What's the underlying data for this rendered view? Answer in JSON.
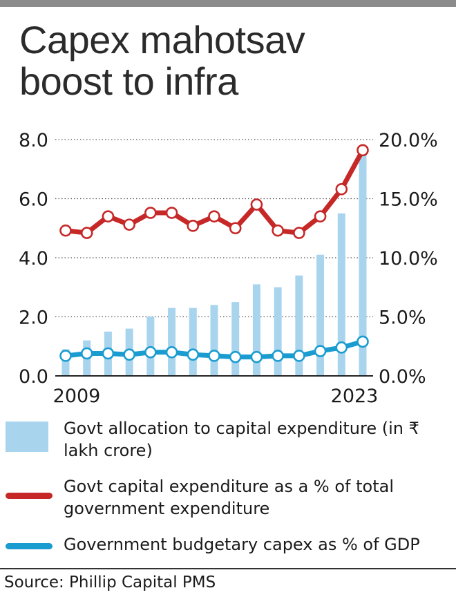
{
  "header": {
    "title": "Capex mahotsav boost to infra"
  },
  "chart_data": {
    "type": "bar",
    "x": [
      2009,
      2010,
      2011,
      2012,
      2013,
      2014,
      2015,
      2016,
      2017,
      2018,
      2019,
      2020,
      2021,
      2022,
      2023
    ],
    "x_tick_labels": [
      "2009",
      "2023"
    ],
    "y_left": {
      "lim": [
        0,
        8
      ],
      "ticks": [
        "0.0",
        "2.0",
        "4.0",
        "6.0",
        "8.0"
      ]
    },
    "y_right": {
      "lim": [
        0,
        20
      ],
      "ticks": [
        "0.0%",
        "5.0%",
        "10.0%",
        "15.0%",
        "20.0%"
      ]
    },
    "grid": "dotted-horizontal",
    "series": [
      {
        "name": "Govt allocation to capital expenditure (in ₹ lakh crore)",
        "kind": "bar",
        "axis": "left",
        "color": "#a8d4ee",
        "values": [
          0.9,
          1.2,
          1.5,
          1.6,
          2.0,
          2.3,
          2.3,
          2.4,
          2.5,
          3.1,
          3.0,
          3.4,
          4.1,
          5.5,
          7.5
        ]
      },
      {
        "name": "Govt capital expenditure as a % of total government expenditure",
        "kind": "line",
        "axis": "right",
        "color": "#c62828",
        "values": [
          12.3,
          12.1,
          13.5,
          12.8,
          13.8,
          13.8,
          12.7,
          13.5,
          12.5,
          14.5,
          12.3,
          12.1,
          13.5,
          15.8,
          19.1
        ]
      },
      {
        "name": "Government budgetary capex as % of GDP",
        "kind": "line",
        "axis": "right",
        "color": "#1a9cd0",
        "values": [
          1.7,
          1.9,
          1.9,
          1.8,
          2.0,
          2.0,
          1.8,
          1.7,
          1.6,
          1.6,
          1.7,
          1.7,
          2.1,
          2.4,
          2.9
        ]
      }
    ]
  },
  "legend": [
    {
      "label": "Govt allocation to capital expenditure (in ₹ lakh crore)",
      "icon": "bar-swatch",
      "color": "#a8d4ee"
    },
    {
      "label": "Govt capital expenditure as a % of total government expenditure",
      "icon": "red-line-swatch",
      "color": "#c62828"
    },
    {
      "label": "Government budgetary capex as % of GDP",
      "icon": "blue-line-swatch",
      "color": "#1a9cd0"
    }
  ],
  "footer": {
    "source": "Source: Phillip Capital PMS"
  }
}
